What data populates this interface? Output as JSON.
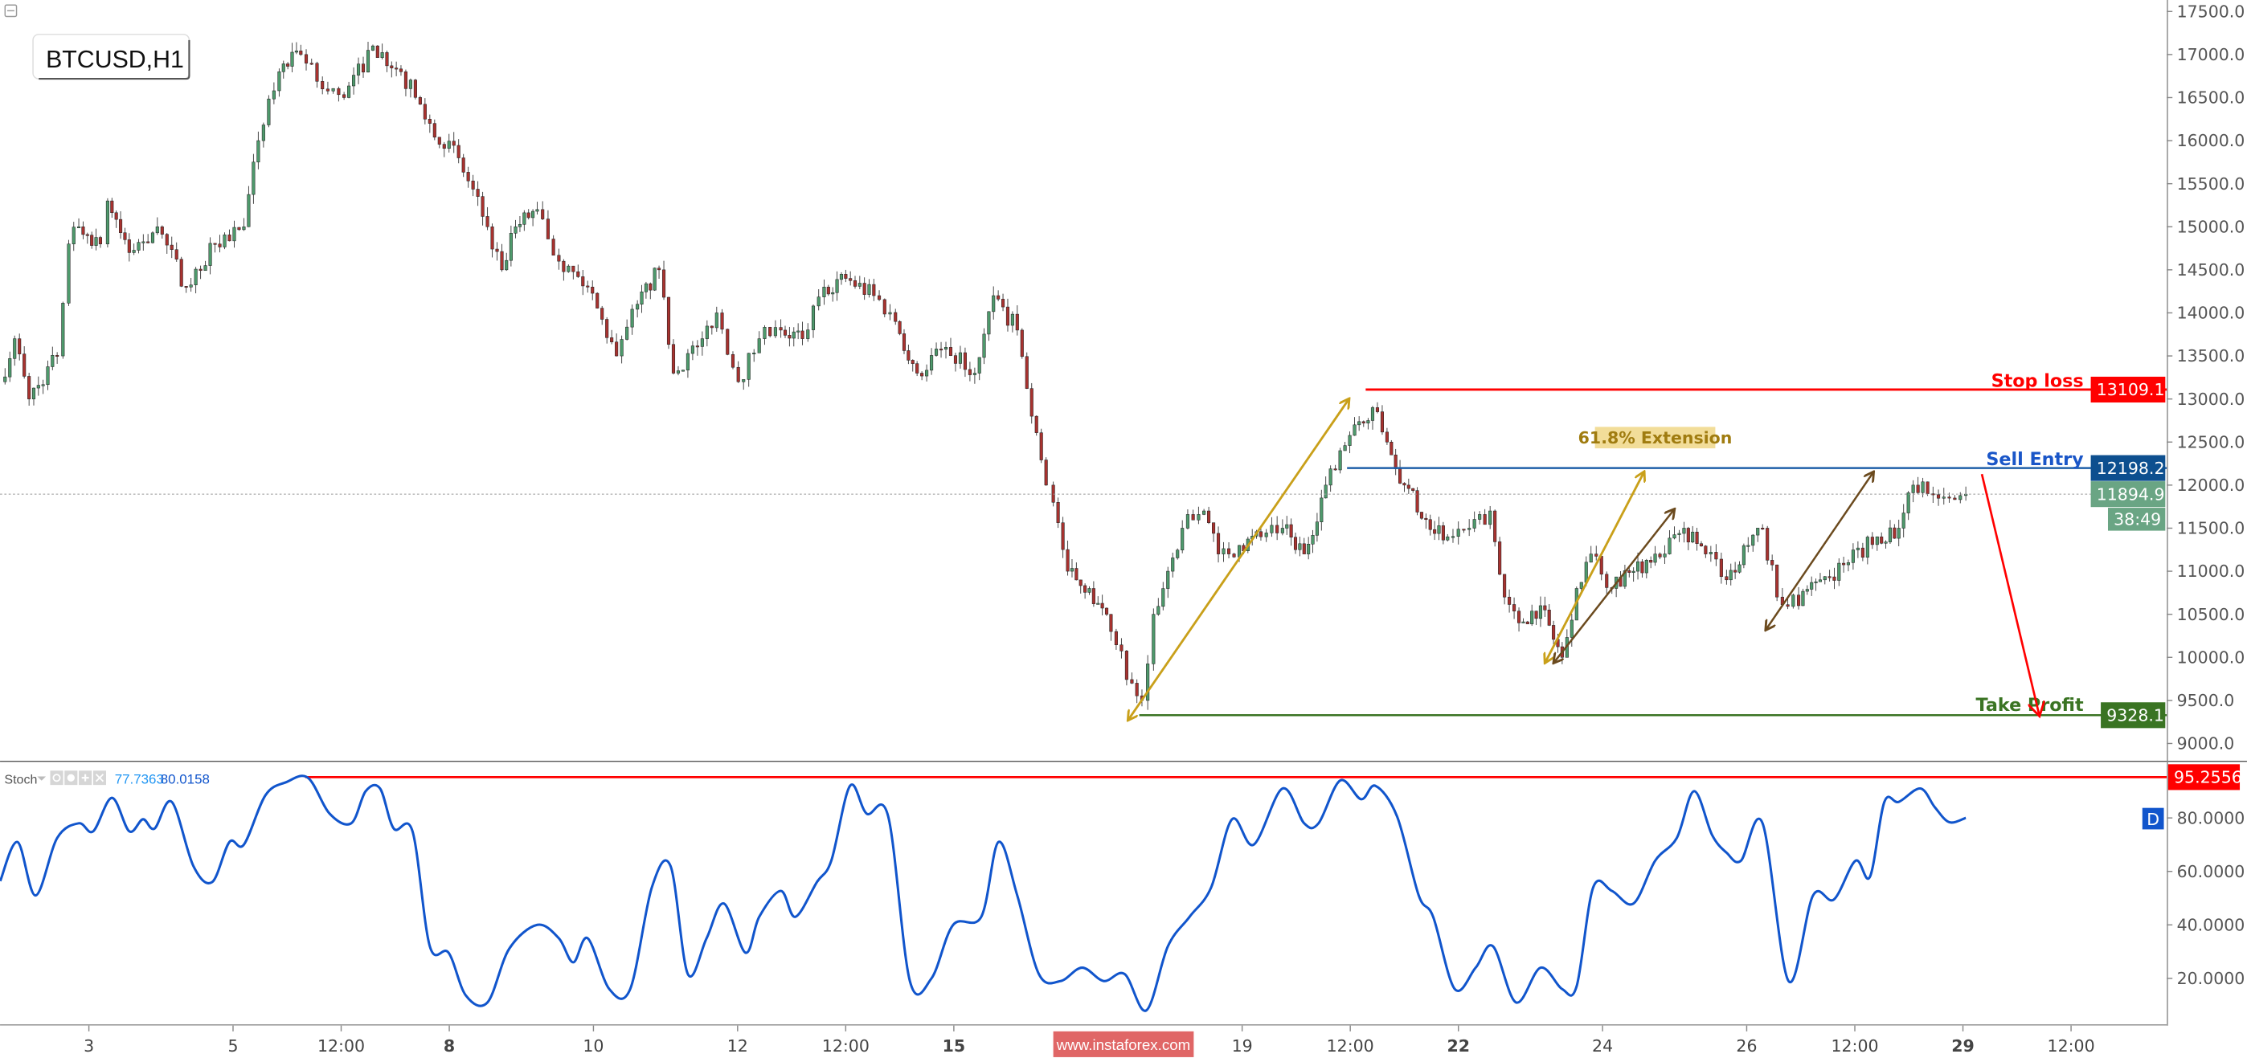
{
  "header": {
    "symbol_label": "BTCUSD,H1"
  },
  "indicator": {
    "name": "Stoch",
    "value_k": "77.7363",
    "value_d": "80.0158",
    "k_color": "#2196f3",
    "d_color": "#1155cc",
    "badge": "D"
  },
  "watermark": "www.instaforex.com",
  "levels": {
    "stop_loss": {
      "label": "Stop loss",
      "value": 13109.1,
      "tag": "13109.1",
      "color": "#ff0000"
    },
    "sell_entry": {
      "label": "Sell Entry",
      "value": 12198.2,
      "tag": "12198.2",
      "color": "#0d4f8f"
    },
    "take_profit": {
      "label": "Take Profit",
      "value": 9328.1,
      "tag": "9328.1",
      "color": "#3a7423"
    },
    "last_price": {
      "value": 11894.9,
      "tag": "11894.9",
      "countdown": "38:49",
      "color": "#6aa584"
    },
    "stoch_high": {
      "value": 95.2556,
      "tag": "95.2556",
      "color": "#ff0000"
    }
  },
  "annotation": {
    "extension_label": "61.8% Extension"
  },
  "chart_data": [
    {
      "type": "candlestick",
      "title": "BTCUSD,H1",
      "x_unit": "day of month",
      "ylim": [
        8750,
        17600
      ],
      "y_ticks": [
        "17500.0",
        "17000.0",
        "16500.0",
        "16000.0",
        "15500.0",
        "15000.0",
        "14500.0",
        "14000.0",
        "13500.0",
        "13000.0",
        "12500.0",
        "12000.0",
        "11500.0",
        "11000.0",
        "10500.0",
        "10000.0",
        "9500.0",
        "9000.0"
      ],
      "x_ticks": [
        [
          "3",
          3,
          false
        ],
        [
          "5",
          5,
          false
        ],
        [
          "12:00",
          6.5,
          false
        ],
        [
          "8",
          8,
          true
        ],
        [
          "10",
          10,
          false
        ],
        [
          "12",
          12,
          false
        ],
        [
          "12:00",
          13.5,
          false
        ],
        [
          "15",
          15,
          true
        ],
        [
          "19",
          19,
          false
        ],
        [
          "12:00",
          20.5,
          false
        ],
        [
          "22",
          22,
          true
        ],
        [
          "24",
          24,
          false
        ],
        [
          "26",
          26,
          false
        ],
        [
          "12:00",
          27.5,
          false
        ],
        [
          "29",
          29,
          true
        ],
        [
          "12:00",
          30.5,
          false
        ]
      ],
      "up_color": "#4e9a6c",
      "down_color": "#a8322f",
      "closes": [
        [
          1.77,
          13200
        ],
        [
          1.97,
          13700
        ],
        [
          2.17,
          13000
        ],
        [
          2.56,
          13500
        ],
        [
          2.72,
          14800
        ],
        [
          2.86,
          15000
        ],
        [
          3.16,
          14800
        ],
        [
          3.26,
          15300
        ],
        [
          3.56,
          14700
        ],
        [
          3.95,
          15000
        ],
        [
          4.35,
          14300
        ],
        [
          4.75,
          14800
        ],
        [
          5.15,
          15000
        ],
        [
          5.35,
          16000
        ],
        [
          5.64,
          16800
        ],
        [
          5.94,
          17000
        ],
        [
          6.24,
          16600
        ],
        [
          6.54,
          16500
        ],
        [
          6.94,
          17100
        ],
        [
          7.33,
          16800
        ],
        [
          7.73,
          16200
        ],
        [
          8.13,
          15800
        ],
        [
          8.53,
          15000
        ],
        [
          8.73,
          14500
        ],
        [
          8.92,
          15000
        ],
        [
          9.22,
          15200
        ],
        [
          9.52,
          14600
        ],
        [
          9.92,
          14300
        ],
        [
          10.32,
          13500
        ],
        [
          10.61,
          14100
        ],
        [
          10.91,
          14500
        ],
        [
          11.11,
          13300
        ],
        [
          11.51,
          13700
        ],
        [
          11.71,
          14000
        ],
        [
          12.01,
          13200
        ],
        [
          12.3,
          13700
        ],
        [
          12.6,
          13800
        ],
        [
          12.9,
          13700
        ],
        [
          13.2,
          14300
        ],
        [
          13.5,
          14400
        ],
        [
          13.89,
          14200
        ],
        [
          14.19,
          13900
        ],
        [
          14.49,
          13300
        ],
        [
          14.89,
          13600
        ],
        [
          15.29,
          13300
        ],
        [
          15.55,
          14200
        ],
        [
          15.88,
          13800
        ],
        [
          16.08,
          12800
        ],
        [
          16.28,
          12000
        ],
        [
          16.38,
          11800
        ],
        [
          16.58,
          11000
        ],
        [
          16.88,
          10800
        ],
        [
          17.18,
          10300
        ],
        [
          17.47,
          9700
        ],
        [
          17.61,
          9500
        ],
        [
          17.77,
          10500
        ],
        [
          17.97,
          11000
        ],
        [
          18.17,
          11500
        ],
        [
          18.47,
          11700
        ],
        [
          18.67,
          11200
        ],
        [
          18.96,
          11300
        ],
        [
          19.26,
          11400
        ],
        [
          19.56,
          11500
        ],
        [
          19.86,
          11200
        ],
        [
          20.16,
          12000
        ],
        [
          20.36,
          12400
        ],
        [
          20.56,
          12700
        ],
        [
          20.81,
          12900
        ],
        [
          21.01,
          12500
        ],
        [
          21.25,
          12000
        ],
        [
          21.55,
          11600
        ],
        [
          21.85,
          11400
        ],
        [
          22.15,
          11500
        ],
        [
          22.44,
          11700
        ],
        [
          22.64,
          10700
        ],
        [
          22.84,
          10400
        ],
        [
          23.14,
          10600
        ],
        [
          23.44,
          10000
        ],
        [
          23.64,
          10800
        ],
        [
          23.84,
          11200
        ],
        [
          24.13,
          10800
        ],
        [
          24.43,
          11000
        ],
        [
          24.73,
          11200
        ],
        [
          25.13,
          11500
        ],
        [
          25.43,
          11200
        ],
        [
          25.72,
          10900
        ],
        [
          26.02,
          11300
        ],
        [
          26.22,
          11500
        ],
        [
          26.42,
          10700
        ],
        [
          26.72,
          10600
        ],
        [
          27.02,
          10900
        ],
        [
          27.41,
          11100
        ],
        [
          27.81,
          11400
        ],
        [
          28.11,
          11500
        ],
        [
          28.31,
          12000
        ],
        [
          28.51,
          11900
        ],
        [
          28.81,
          11850
        ],
        [
          29.04,
          11894.9
        ]
      ]
    },
    {
      "type": "line",
      "title": "Stoch",
      "ylim": [
        0,
        100
      ],
      "y_ticks": [
        "80.0000",
        "60.0000",
        "40.0000",
        "20.0000"
      ],
      "series": [
        {
          "name": "Stoch",
          "color": "#1155cc",
          "points": [
            [
              1.77,
              56.4
            ],
            [
              2.01,
              71
            ],
            [
              2.26,
              51
            ],
            [
              2.56,
              72.5
            ],
            [
              2.86,
              78
            ],
            [
              3.06,
              75
            ],
            [
              3.32,
              87.5
            ],
            [
              3.56,
              75
            ],
            [
              3.75,
              79.5
            ],
            [
              3.91,
              76
            ],
            [
              4.15,
              86
            ],
            [
              4.45,
              62
            ],
            [
              4.71,
              56
            ],
            [
              4.95,
              71
            ],
            [
              5.15,
              70
            ],
            [
              5.45,
              88.5
            ],
            [
              5.74,
              93.4
            ],
            [
              6.04,
              95
            ],
            [
              6.34,
              81.6
            ],
            [
              6.64,
              78
            ],
            [
              6.84,
              90
            ],
            [
              7.04,
              91
            ],
            [
              7.23,
              76
            ],
            [
              7.49,
              75
            ],
            [
              7.73,
              32
            ],
            [
              7.99,
              29.6
            ],
            [
              8.23,
              13.6
            ],
            [
              8.53,
              11
            ],
            [
              8.83,
              31
            ],
            [
              9.22,
              40
            ],
            [
              9.52,
              35
            ],
            [
              9.72,
              26
            ],
            [
              9.92,
              35
            ],
            [
              10.22,
              16
            ],
            [
              10.51,
              16
            ],
            [
              10.81,
              54
            ],
            [
              11.07,
              62
            ],
            [
              11.31,
              21.6
            ],
            [
              11.57,
              35
            ],
            [
              11.81,
              48
            ],
            [
              12.11,
              29.6
            ],
            [
              12.3,
              43
            ],
            [
              12.6,
              52.7
            ],
            [
              12.8,
              43
            ],
            [
              13.1,
              56
            ],
            [
              13.3,
              64
            ],
            [
              13.56,
              92
            ],
            [
              13.79,
              81.6
            ],
            [
              14.09,
              80.5
            ],
            [
              14.39,
              19
            ],
            [
              14.69,
              20
            ],
            [
              14.99,
              40
            ],
            [
              15.38,
              43
            ],
            [
              15.62,
              71
            ],
            [
              15.88,
              51
            ],
            [
              16.18,
              21.6
            ],
            [
              16.48,
              19
            ],
            [
              16.78,
              24
            ],
            [
              17.08,
              19
            ],
            [
              17.37,
              21.6
            ],
            [
              17.67,
              8
            ],
            [
              17.97,
              32
            ],
            [
              18.27,
              43
            ],
            [
              18.57,
              54
            ],
            [
              18.86,
              79.5
            ],
            [
              19.16,
              70
            ],
            [
              19.56,
              91
            ],
            [
              19.86,
              78
            ],
            [
              20.06,
              78
            ],
            [
              20.36,
              94
            ],
            [
              20.65,
              87
            ],
            [
              20.85,
              92
            ],
            [
              21.15,
              80.5
            ],
            [
              21.45,
              51
            ],
            [
              21.65,
              43
            ],
            [
              21.95,
              16
            ],
            [
              22.24,
              24
            ],
            [
              22.48,
              32
            ],
            [
              22.8,
              11
            ],
            [
              23.14,
              24
            ],
            [
              23.44,
              16
            ],
            [
              23.64,
              17
            ],
            [
              23.87,
              54
            ],
            [
              24.13,
              52.7
            ],
            [
              24.43,
              48
            ],
            [
              24.73,
              64
            ],
            [
              25.03,
              72.5
            ],
            [
              25.27,
              90
            ],
            [
              25.52,
              73.6
            ],
            [
              25.72,
              67
            ],
            [
              25.92,
              64
            ],
            [
              26.22,
              78
            ],
            [
              26.58,
              19
            ],
            [
              26.92,
              51
            ],
            [
              27.21,
              49.5
            ],
            [
              27.51,
              64
            ],
            [
              27.71,
              58
            ],
            [
              27.91,
              86
            ],
            [
              28.11,
              86
            ],
            [
              28.41,
              91
            ],
            [
              28.61,
              84
            ],
            [
              28.81,
              78.4
            ],
            [
              29.04,
              80
            ]
          ]
        }
      ]
    }
  ]
}
